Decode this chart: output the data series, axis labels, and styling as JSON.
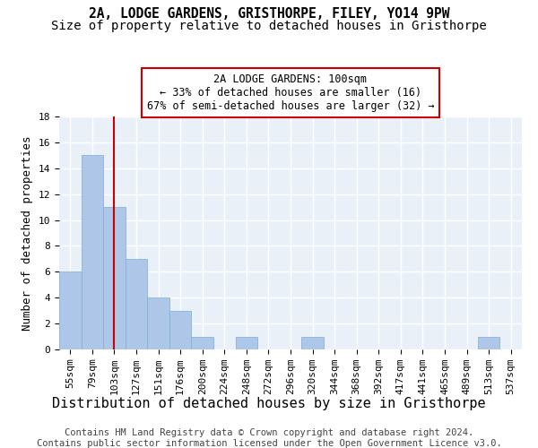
{
  "title1": "2A, LODGE GARDENS, GRISTHORPE, FILEY, YO14 9PW",
  "title2": "Size of property relative to detached houses in Gristhorpe",
  "xlabel": "Distribution of detached houses by size in Gristhorpe",
  "ylabel": "Number of detached properties",
  "categories": [
    "55sqm",
    "79sqm",
    "103sqm",
    "127sqm",
    "151sqm",
    "176sqm",
    "200sqm",
    "224sqm",
    "248sqm",
    "272sqm",
    "296sqm",
    "320sqm",
    "344sqm",
    "368sqm",
    "392sqm",
    "417sqm",
    "441sqm",
    "465sqm",
    "489sqm",
    "513sqm",
    "537sqm"
  ],
  "values": [
    6,
    15,
    11,
    7,
    4,
    3,
    1,
    0,
    1,
    0,
    0,
    1,
    0,
    0,
    0,
    0,
    0,
    0,
    0,
    1,
    0
  ],
  "bar_color": "#aec6e8",
  "bar_edgecolor": "#7aadd4",
  "vline_x_index": 2,
  "vline_color": "#cc0000",
  "annotation_text": "2A LODGE GARDENS: 100sqm\n← 33% of detached houses are smaller (16)\n67% of semi-detached houses are larger (32) →",
  "annotation_box_color": "#ffffff",
  "annotation_box_edgecolor": "#cc0000",
  "ylim": [
    0,
    18
  ],
  "yticks": [
    0,
    2,
    4,
    6,
    8,
    10,
    12,
    14,
    16,
    18
  ],
  "footnote1": "Contains HM Land Registry data © Crown copyright and database right 2024.",
  "footnote2": "Contains public sector information licensed under the Open Government Licence v3.0.",
  "bg_color": "#eaf0f8",
  "grid_color": "#ffffff",
  "title1_fontsize": 10.5,
  "title2_fontsize": 10,
  "xlabel_fontsize": 11,
  "ylabel_fontsize": 9,
  "tick_fontsize": 8,
  "footnote_fontsize": 7.5
}
